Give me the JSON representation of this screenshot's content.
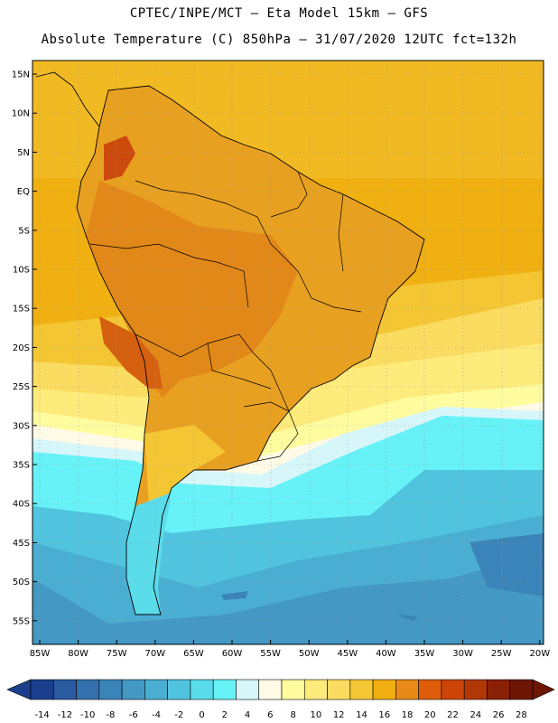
{
  "header": {
    "line1": "CPTEC/INPE/MCT –  Eta Model 15km – GFS",
    "line2": "Absolute Temperature (C) 850hPa – 31/07/2020 12UTC fct=132h"
  },
  "map": {
    "lat_labels": [
      "15N",
      "10N",
      "5N",
      "EQ",
      "5S",
      "10S",
      "15S",
      "20S",
      "25S",
      "30S",
      "35S",
      "40S",
      "45S",
      "50S",
      "55S"
    ],
    "lon_labels": [
      "85W",
      "80W",
      "75W",
      "70W",
      "65W",
      "60W",
      "55W",
      "50W",
      "45W",
      "40W",
      "35W",
      "30W",
      "25W",
      "20W"
    ]
  },
  "colorbar": {
    "labels": [
      "-14",
      "-12",
      "-10",
      "-8",
      "-6",
      "-4",
      "-2",
      "0",
      "2",
      "4",
      "6",
      "8",
      "10",
      "12",
      "14",
      "16",
      "18",
      "20",
      "22",
      "24",
      "26",
      "28"
    ],
    "colors": [
      "#1b3f8c",
      "#2a5aa0",
      "#3370ad",
      "#3b84b9",
      "#4498c4",
      "#4aaed2",
      "#50c4de",
      "#5adcea",
      "#66f2f6",
      "#d6f6fa",
      "#fefae6",
      "#fffca0",
      "#fdeb7c",
      "#fadc60",
      "#f4c634",
      "#f0ae10",
      "#e88a18",
      "#de5c0a",
      "#cc4408",
      "#b03806",
      "#8a2004",
      "#6e1604"
    ]
  }
}
